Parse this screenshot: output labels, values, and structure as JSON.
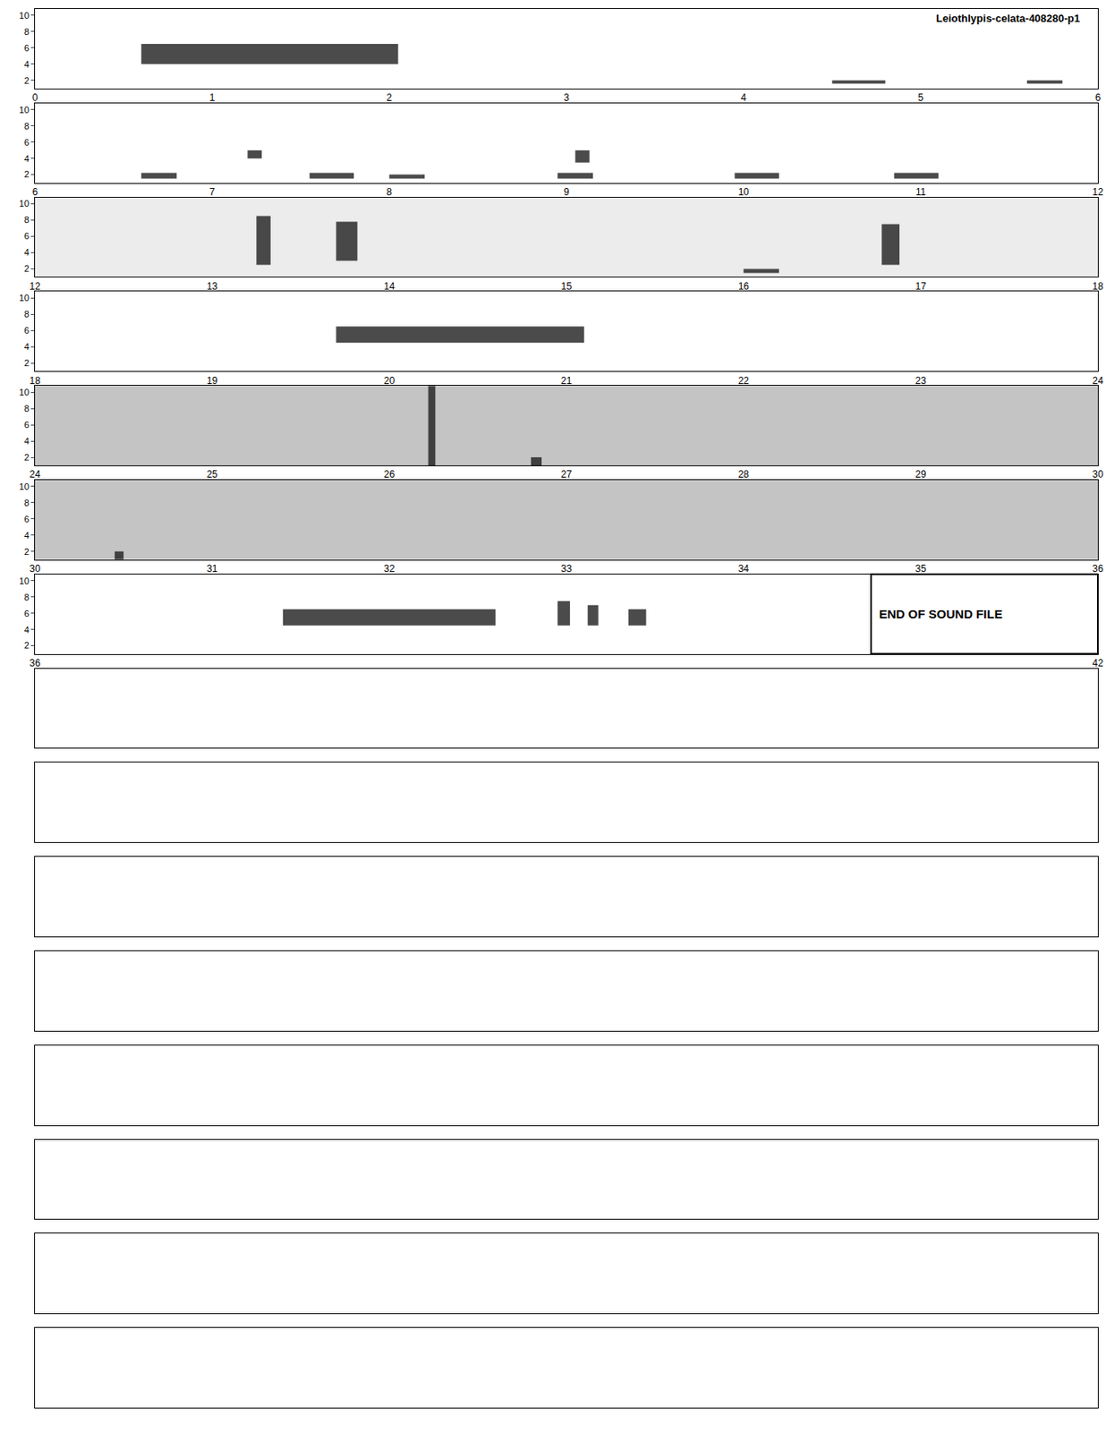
{
  "chart_data": [
    {
      "type": "spectrogram",
      "title": "Leiothlypis-celata-408280-p1",
      "xlim": [
        0,
        6
      ],
      "xticks": [
        0,
        1,
        2,
        3,
        4,
        5,
        6
      ],
      "ylim": [
        1,
        10.8
      ],
      "yticks": [
        2,
        4,
        6,
        8,
        10
      ],
      "color": "#ffffff",
      "sounds": [
        {
          "start": 0.6,
          "end": 2.05,
          "low": 4.0,
          "high": 6.5
        },
        {
          "start": 4.5,
          "end": 4.8,
          "low": 1.6,
          "high": 2.0
        },
        {
          "start": 5.6,
          "end": 5.8,
          "low": 1.6,
          "high": 2.0
        }
      ]
    },
    {
      "type": "spectrogram",
      "xlim": [
        6,
        12
      ],
      "xticks": [
        6,
        7,
        8,
        9,
        10,
        11,
        12
      ],
      "ylim": [
        1,
        10.8
      ],
      "yticks": [
        2,
        4,
        6,
        8,
        10
      ],
      "color": "#ffffff",
      "sounds": [
        {
          "start": 7.2,
          "end": 7.28,
          "low": 4.0,
          "high": 5.0
        },
        {
          "start": 9.05,
          "end": 9.13,
          "low": 3.5,
          "high": 5.0
        },
        {
          "start": 6.6,
          "end": 6.8,
          "low": 1.5,
          "high": 2.2
        },
        {
          "start": 7.55,
          "end": 7.8,
          "low": 1.5,
          "high": 2.2
        },
        {
          "start": 8.0,
          "end": 8.2,
          "low": 1.5,
          "high": 2.0
        },
        {
          "start": 8.95,
          "end": 9.15,
          "low": 1.5,
          "high": 2.2
        },
        {
          "start": 9.95,
          "end": 10.2,
          "low": 1.5,
          "high": 2.2
        },
        {
          "start": 10.85,
          "end": 11.1,
          "low": 1.5,
          "high": 2.2
        }
      ]
    },
    {
      "type": "spectrogram",
      "xlim": [
        12,
        18
      ],
      "xticks": [
        12,
        13,
        14,
        15,
        16,
        17,
        18
      ],
      "ylim": [
        1,
        10.8
      ],
      "yticks": [
        2,
        4,
        6,
        8,
        10
      ],
      "color": "#ececec",
      "sounds": [
        {
          "start": 13.25,
          "end": 13.33,
          "low": 2.5,
          "high": 8.5
        },
        {
          "start": 13.7,
          "end": 13.82,
          "low": 3.0,
          "high": 7.8
        },
        {
          "start": 16.78,
          "end": 16.88,
          "low": 2.5,
          "high": 7.5
        },
        {
          "start": 16.0,
          "end": 16.2,
          "low": 1.5,
          "high": 2.0
        }
      ]
    },
    {
      "type": "spectrogram",
      "xlim": [
        18,
        24
      ],
      "xticks": [
        18,
        19,
        20,
        21,
        22,
        23,
        24
      ],
      "ylim": [
        1,
        10.8
      ],
      "yticks": [
        2,
        4,
        6,
        8,
        10
      ],
      "color": "#ffffff",
      "sounds": [
        {
          "start": 19.7,
          "end": 21.1,
          "low": 4.5,
          "high": 6.5
        }
      ]
    },
    {
      "type": "spectrogram",
      "xlim": [
        24,
        30
      ],
      "xticks": [
        24,
        25,
        26,
        27,
        28,
        29,
        30
      ],
      "ylim": [
        1,
        10.8
      ],
      "yticks": [
        2,
        4,
        6,
        8,
        10
      ],
      "color": "#c4c4c4",
      "sounds": [
        {
          "start": 26.22,
          "end": 26.26,
          "low": 1.0,
          "high": 10.8
        },
        {
          "start": 26.8,
          "end": 26.86,
          "low": 1.0,
          "high": 2.0
        }
      ]
    },
    {
      "type": "spectrogram",
      "xlim": [
        30,
        36
      ],
      "xticks": [
        30,
        31,
        32,
        33,
        34,
        35,
        36
      ],
      "ylim": [
        1,
        10.8
      ],
      "yticks": [
        2,
        4,
        6,
        8,
        10
      ],
      "color": "#c4c4c4",
      "sounds": [
        {
          "start": 30.45,
          "end": 30.5,
          "low": 1.0,
          "high": 2.0
        }
      ]
    },
    {
      "type": "spectrogram",
      "xlim": [
        36,
        42
      ],
      "xticks": [
        36,
        42
      ],
      "ylim": [
        1,
        10.8
      ],
      "yticks": [
        2,
        4,
        6,
        8,
        10
      ],
      "color": "#ffffff",
      "sounds": [
        {
          "start": 37.4,
          "end": 38.6,
          "low": 4.5,
          "high": 6.5
        },
        {
          "start": 38.95,
          "end": 39.02,
          "low": 4.5,
          "high": 7.5
        },
        {
          "start": 39.12,
          "end": 39.18,
          "low": 4.5,
          "high": 7.0
        },
        {
          "start": 39.35,
          "end": 39.45,
          "low": 4.5,
          "high": 6.5
        }
      ],
      "annotations": [
        {
          "x": 40.72,
          "text": "END OF SOUND FILE"
        }
      ]
    },
    {
      "type": "empty"
    },
    {
      "type": "empty"
    },
    {
      "type": "empty"
    },
    {
      "type": "empty"
    },
    {
      "type": "empty"
    },
    {
      "type": "empty"
    },
    {
      "type": "empty"
    },
    {
      "type": "empty"
    }
  ]
}
